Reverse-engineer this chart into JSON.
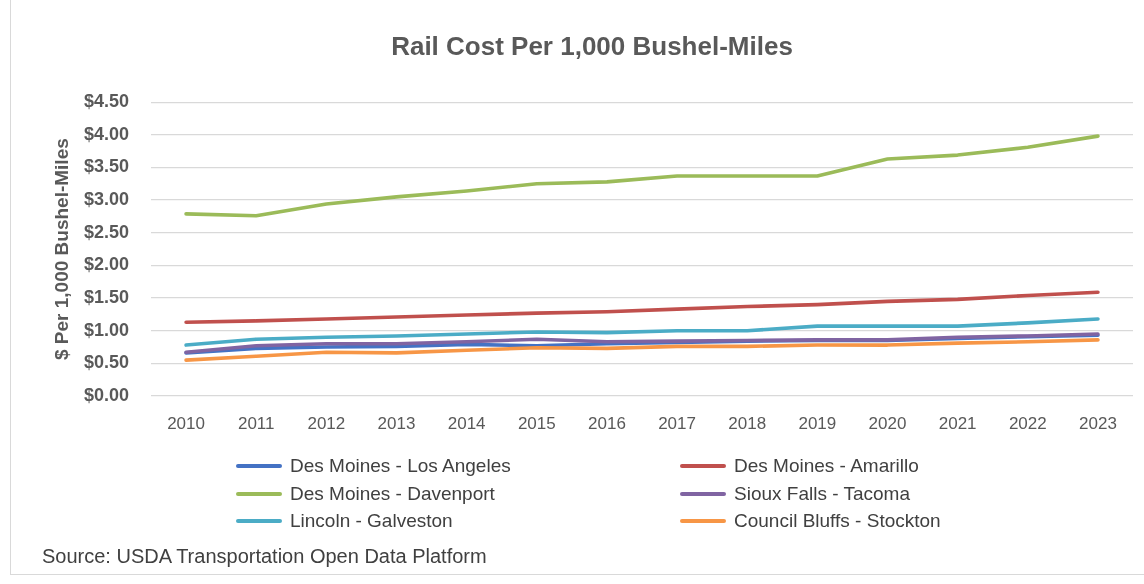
{
  "chart_data": {
    "type": "line",
    "title": "Rail Cost Per 1,000 Bushel-Miles",
    "ylabel": "$ Per 1,000 Bushel-Miles",
    "categories": [
      "2010",
      "2011",
      "2012",
      "2013",
      "2014",
      "2015",
      "2016",
      "2017",
      "2018",
      "2019",
      "2020",
      "2021",
      "2022",
      "2023"
    ],
    "series": [
      {
        "name": "Des Moines - Los Angeles",
        "color": "#4472c4",
        "values": [
          0.66,
          0.73,
          0.75,
          0.76,
          0.79,
          0.77,
          0.8,
          0.82,
          0.84,
          0.85,
          0.85,
          0.88,
          0.91,
          0.93
        ]
      },
      {
        "name": "Des Moines - Amarillo",
        "color": "#c0504d",
        "values": [
          1.13,
          1.15,
          1.18,
          1.21,
          1.24,
          1.27,
          1.29,
          1.33,
          1.37,
          1.4,
          1.45,
          1.48,
          1.54,
          1.59
        ]
      },
      {
        "name": "Des Moines - Davenport",
        "color": "#9bbb59",
        "values": [
          2.79,
          2.76,
          2.94,
          3.05,
          3.14,
          3.25,
          3.28,
          3.37,
          3.37,
          3.37,
          3.63,
          3.69,
          3.81,
          3.98
        ]
      },
      {
        "name": "Sioux Falls - Tacoma",
        "color": "#8064a2",
        "values": [
          0.67,
          0.77,
          0.8,
          0.8,
          0.83,
          0.87,
          0.83,
          0.84,
          0.85,
          0.86,
          0.86,
          0.9,
          0.92,
          0.95
        ]
      },
      {
        "name": "Lincoln - Galveston",
        "color": "#4bacc6",
        "values": [
          0.78,
          0.87,
          0.9,
          0.92,
          0.95,
          0.98,
          0.97,
          1.0,
          1.0,
          1.07,
          1.07,
          1.07,
          1.12,
          1.18
        ]
      },
      {
        "name": "Council Bluffs - Stockton",
        "color": "#f79646",
        "values": [
          0.55,
          0.61,
          0.67,
          0.66,
          0.7,
          0.74,
          0.73,
          0.76,
          0.76,
          0.78,
          0.78,
          0.81,
          0.83,
          0.86
        ]
      }
    ],
    "ylim": [
      0,
      4.5
    ],
    "yticks": [
      {
        "value": 0,
        "label": "$0.00"
      },
      {
        "value": 0.5,
        "label": "$0.50"
      },
      {
        "value": 1,
        "label": "$1.00"
      },
      {
        "value": 1.5,
        "label": "$1.50"
      },
      {
        "value": 2,
        "label": "$2.00"
      },
      {
        "value": 2.5,
        "label": "$2.50"
      },
      {
        "value": 3,
        "label": "$3.00"
      },
      {
        "value": 3.5,
        "label": "$3.50"
      },
      {
        "value": 4,
        "label": "$4.00"
      },
      {
        "value": 4.5,
        "label": "$4.50"
      }
    ],
    "grid": "y",
    "legend": "bottom",
    "marker": "none",
    "line_style": "solid",
    "annotations": [
      "Source: USDA Transportation Open Data Platform"
    ]
  }
}
